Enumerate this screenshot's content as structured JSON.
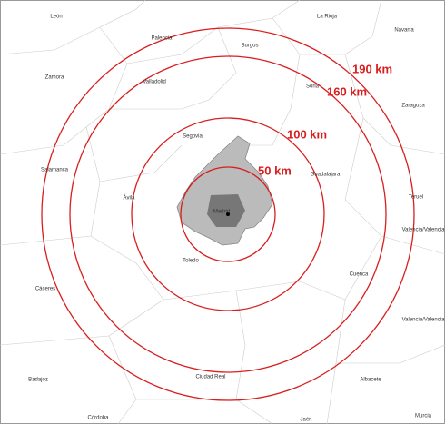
{
  "places": [
    "León",
    "La Rioja",
    "Navarra",
    "Palencia",
    "Burgos",
    "Zamora",
    "Valladolid",
    "Soria",
    "Zaragoza",
    "Segovia",
    "Guadalajara",
    "Salamanca",
    "Teruel",
    "Ávila",
    "Madrid",
    "Valencia/Valencia",
    "Cuenca",
    "Toledo",
    "Cáceres",
    "Valencia/Valencia",
    "Badajoz",
    "Ciudad Real",
    "Albacete",
    "Córdoba",
    "Jaén",
    "Murcia"
  ],
  "rings": [
    {
      "label": "50 km"
    },
    {
      "label": "100 km"
    },
    {
      "label": "160 km"
    },
    {
      "label": "190 km"
    }
  ]
}
